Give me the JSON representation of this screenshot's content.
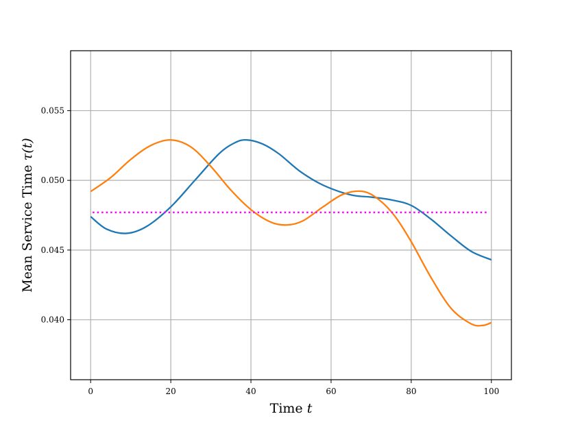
{
  "chart_data": {
    "type": "line",
    "xlabel": "Time",
    "xlabel_var": "t",
    "ylabel": "Mean Service Time",
    "ylabel_var": "τ(t)",
    "xlim": [
      -5,
      105
    ],
    "ylim": [
      0.0357,
      0.0593
    ],
    "grid": true,
    "x_ticks": [
      0,
      20,
      40,
      60,
      80,
      100
    ],
    "x_tick_labels": [
      "0",
      "20",
      "40",
      "60",
      "80",
      "100"
    ],
    "y_ticks": [
      0.04,
      0.045,
      0.05,
      0.055
    ],
    "y_tick_labels": [
      "0.040",
      "0.045",
      "0.050",
      "0.055"
    ],
    "series": [
      {
        "color": "#1f77b4",
        "style": "solid",
        "x": [
          0,
          4,
          9,
          14,
          20,
          26,
          32,
          36,
          39,
          43,
          47,
          52,
          57,
          62,
          66,
          70,
          75,
          80,
          85,
          90,
          95,
          100
        ],
        "y": [
          0.0474,
          0.0465,
          0.0462,
          0.0467,
          0.0481,
          0.05,
          0.0519,
          0.0527,
          0.0529,
          0.0526,
          0.0519,
          0.0507,
          0.0498,
          0.0492,
          0.0489,
          0.0488,
          0.0486,
          0.0482,
          0.0472,
          0.046,
          0.0449,
          0.0443
        ]
      },
      {
        "color": "#ff7f0e",
        "style": "solid",
        "x": [
          0,
          5,
          10,
          15,
          20,
          25,
          30,
          35,
          40,
          45,
          49,
          53,
          58,
          63,
          68,
          72,
          76,
          80,
          85,
          90,
          95,
          98,
          100
        ],
        "y": [
          0.0492,
          0.0502,
          0.0515,
          0.0525,
          0.0529,
          0.0524,
          0.051,
          0.0493,
          0.0479,
          0.047,
          0.0468,
          0.0471,
          0.0481,
          0.049,
          0.0492,
          0.0486,
          0.0474,
          0.0456,
          0.043,
          0.0408,
          0.0397,
          0.0396,
          0.0398
        ]
      },
      {
        "color": "#ff00ff",
        "style": "dotted",
        "x": [
          0.5,
          99
        ],
        "y": [
          0.0477,
          0.0477
        ]
      }
    ]
  }
}
